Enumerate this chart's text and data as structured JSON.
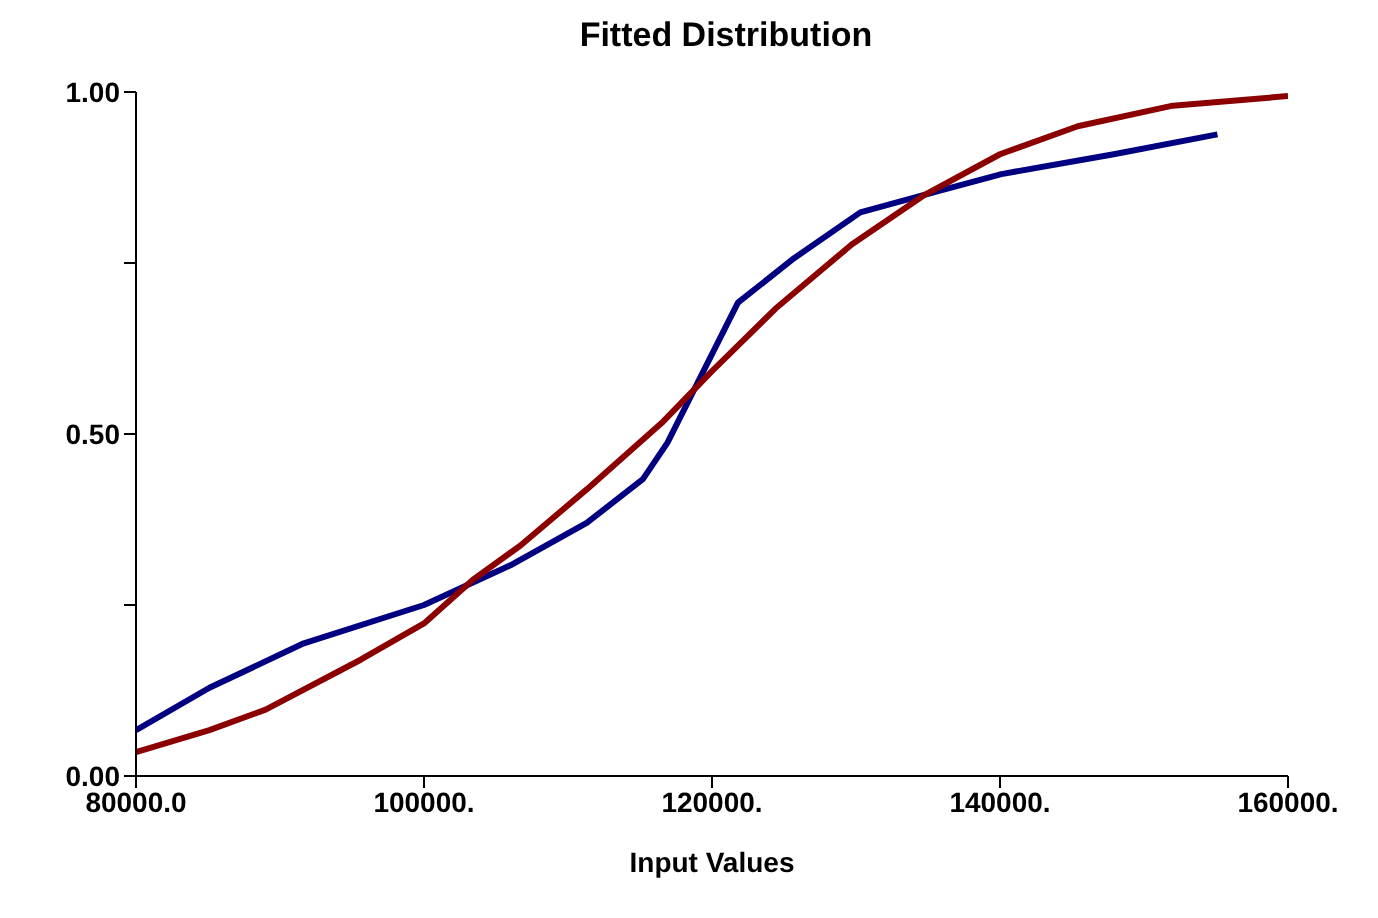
{
  "chart_data": {
    "type": "line",
    "title": "Fitted Distribution",
    "xlabel": "Input Values",
    "xlim": [
      80000,
      160000
    ],
    "xticks": [
      {
        "value": 80000,
        "label": "80000.0"
      },
      {
        "value": 100000,
        "label": "100000."
      },
      {
        "value": 120000,
        "label": "120000."
      },
      {
        "value": 140000,
        "label": "140000."
      },
      {
        "value": 160000,
        "label": "160000."
      }
    ],
    "ylim": [
      0,
      1
    ],
    "yticks": [
      {
        "value": 0,
        "label": "0.00"
      },
      {
        "value": 0.25,
        "label": null
      },
      {
        "value": 0.5,
        "label": "0.50"
      },
      {
        "value": 0.75,
        "label": null
      },
      {
        "value": 1,
        "label": "1.00"
      }
    ],
    "grid": false,
    "legend": false,
    "marker": "none",
    "line_style": "solid",
    "series": [
      {
        "color": "#000080",
        "x": [
          80000,
          85100,
          91650,
          100000,
          106000,
          111300,
          115200,
          116900,
          121800,
          125700,
          130300,
          134800,
          140100,
          147900,
          155100
        ],
        "values": [
          0.067,
          0.129,
          0.194,
          0.25,
          0.308,
          0.37,
          0.434,
          0.487,
          0.692,
          0.757,
          0.824,
          0.85,
          0.88,
          0.909,
          0.938
        ]
      },
      {
        "color": "#8b0000",
        "x": [
          80000,
          85100,
          89000,
          95600,
          100000,
          103400,
          106700,
          111300,
          116500,
          120000,
          124400,
          129700,
          134800,
          140000,
          145400,
          152000,
          160000
        ],
        "values": [
          0.035,
          0.067,
          0.097,
          0.17,
          0.223,
          0.287,
          0.337,
          0.419,
          0.516,
          0.592,
          0.683,
          0.777,
          0.85,
          0.909,
          0.95,
          0.98,
          0.994
        ]
      }
    ]
  }
}
